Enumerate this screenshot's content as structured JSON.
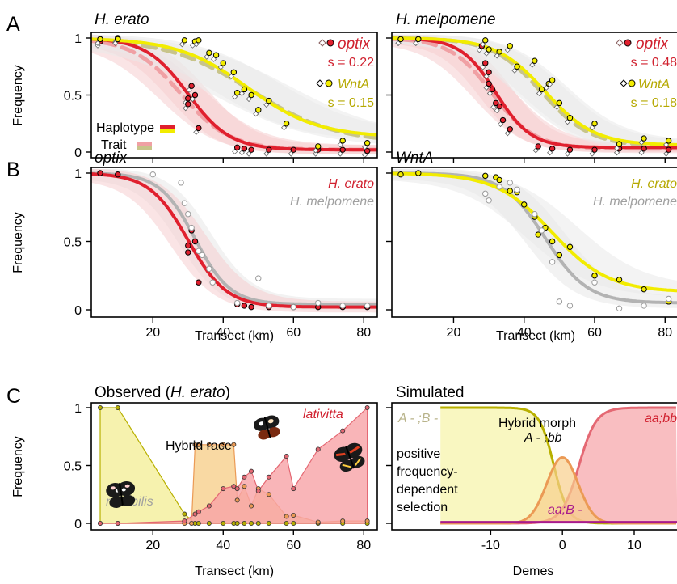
{
  "colors": {
    "optix": "#e0202e",
    "optix_trait": "#f0a0a4",
    "wnta": "#f2ec00",
    "wnta_trait": "#c8c48a",
    "melpomene": "#b3b3b3",
    "band_red": "#f6cdd0",
    "band_gray": "#e9e9e9",
    "label_red": "#d0202e",
    "label_olive": "#b5a800",
    "label_gray": "#a0a0a0",
    "notabilis": "#f4ef9a",
    "hybrid": "#f8cf8c",
    "lativitta": "#f7a3a6",
    "notabilis_line": "#b8b000",
    "hybrid_line": "#eb9a55",
    "lativitta_line": "#e46873",
    "sim_ab": "#a81a8c"
  },
  "figure_labels": {
    "A": "A",
    "B": "B",
    "C": "C"
  },
  "common": {
    "ylabel": "Frequency",
    "xlabel_transect": "Transect (km)",
    "xlabel_demes": "Demes",
    "yticks": [
      "0",
      "0.5",
      "1"
    ]
  },
  "chart_data": [
    {
      "id": "A-left",
      "type": "line",
      "title": "H. erato",
      "ylabel": "Frequency",
      "xlim": [
        5,
        82
      ],
      "ylim": [
        0,
        1
      ],
      "grid": false,
      "curves": [
        {
          "series": "optix haplotype",
          "style": "solid",
          "center": 30,
          "width": 6,
          "low": 0.02,
          "high": 1.0
        },
        {
          "series": "optix trait",
          "style": "dashed",
          "center": 28,
          "width": 7,
          "low": 0.02,
          "high": 1.0
        },
        {
          "series": "WntA haplotype",
          "style": "solid",
          "center": 47,
          "width": 10,
          "low": 0.13,
          "high": 1.0
        },
        {
          "series": "WntA trait",
          "style": "dashed",
          "center": 48,
          "width": 12,
          "low": 0.08,
          "high": 1.0
        }
      ],
      "points": [
        {
          "series": "optix",
          "x": [
            5,
            5,
            10,
            10,
            30,
            30,
            31,
            32,
            33,
            44,
            46,
            48,
            53,
            60,
            67,
            74,
            81
          ],
          "y": [
            0.99,
            0.97,
            1.0,
            0.99,
            0.47,
            0.42,
            0.58,
            0.5,
            0.21,
            0.04,
            0.03,
            0.02,
            0.02,
            0.02,
            0.02,
            0.02,
            0.01
          ]
        },
        {
          "series": "WntA",
          "x": [
            5,
            10,
            29,
            32,
            33,
            36,
            38,
            40,
            43,
            44,
            46,
            48,
            50,
            53,
            58,
            67,
            74,
            81
          ],
          "y": [
            0.99,
            0.99,
            0.98,
            0.97,
            0.98,
            0.87,
            0.85,
            0.78,
            0.7,
            0.52,
            0.55,
            0.5,
            0.37,
            0.45,
            0.25,
            0.05,
            0.1,
            0.08
          ]
        }
      ],
      "legend": {
        "items": [
          {
            "label": "optix",
            "sublabel": "s = 0.22"
          },
          {
            "label": "WntA",
            "sublabel": "s = 0.15"
          }
        ],
        "line_legend": [
          "Haplotype",
          "Trait"
        ],
        "placement": "top-right"
      }
    },
    {
      "id": "A-right",
      "type": "line",
      "title": "H. melpomene",
      "xlim": [
        5,
        82
      ],
      "ylim": [
        0,
        1
      ],
      "grid": false,
      "curves": [
        {
          "series": "optix haplotype",
          "style": "solid",
          "center": 32,
          "width": 5,
          "low": 0.04,
          "high": 1.0
        },
        {
          "series": "optix trait",
          "style": "dashed",
          "center": 31,
          "width": 6,
          "low": 0.03,
          "high": 1.0
        },
        {
          "series": "WntA haplotype",
          "style": "solid",
          "center": 46,
          "width": 7,
          "low": 0.06,
          "high": 1.0
        },
        {
          "series": "WntA trait",
          "style": "dashed",
          "center": 45,
          "width": 7,
          "low": 0.05,
          "high": 1.0
        }
      ],
      "points": [
        {
          "series": "optix",
          "x": [
            5,
            10,
            28,
            29,
            30,
            30,
            31,
            32,
            33,
            34,
            36,
            44,
            48,
            53,
            60,
            67,
            74,
            81
          ],
          "y": [
            0.99,
            0.99,
            0.93,
            0.78,
            0.7,
            0.6,
            0.55,
            0.43,
            0.4,
            0.28,
            0.2,
            0.05,
            0.03,
            0.02,
            0.02,
            0.03,
            0.03,
            0.02
          ]
        },
        {
          "series": "WntA",
          "x": [
            5,
            10,
            29,
            30,
            33,
            36,
            38,
            43,
            45,
            47,
            48,
            50,
            53,
            60,
            67,
            74,
            81
          ],
          "y": [
            0.99,
            0.99,
            0.98,
            0.9,
            0.88,
            0.93,
            0.75,
            0.8,
            0.55,
            0.6,
            0.63,
            0.43,
            0.3,
            0.25,
            0.07,
            0.12,
            0.1
          ]
        }
      ],
      "legend": {
        "items": [
          {
            "label": "optix",
            "sublabel": "s = 0.48"
          },
          {
            "label": "WntA",
            "sublabel": "s = 0.18"
          }
        ],
        "placement": "top-right"
      }
    },
    {
      "id": "B-left",
      "type": "line",
      "title": "optix",
      "ylabel": "Frequency",
      "xlim": [
        5,
        82
      ],
      "ylim": [
        0,
        1
      ],
      "grid": false,
      "curves": [
        {
          "series": "H. erato",
          "style": "solid",
          "center": 30,
          "width": 5.5,
          "low": 0.02,
          "high": 1.0
        },
        {
          "series": "H. melpomene",
          "style": "solid",
          "center": 32,
          "width": 5,
          "low": 0.04,
          "high": 1.0
        }
      ],
      "points": [
        {
          "series": "H. erato",
          "x": [
            5,
            10,
            30,
            30,
            31,
            32,
            33,
            44,
            46,
            48,
            53,
            60,
            67,
            74,
            81
          ],
          "y": [
            1.0,
            0.99,
            0.47,
            0.42,
            0.58,
            0.5,
            0.2,
            0.04,
            0.03,
            0.02,
            0.02,
            0.02,
            0.02,
            0.02,
            0.02
          ]
        },
        {
          "series": "H. melpomene",
          "x": [
            20,
            28,
            29,
            30,
            31,
            33,
            34,
            36,
            37,
            44,
            50,
            53,
            60,
            67,
            74,
            81
          ],
          "y": [
            0.99,
            0.93,
            0.78,
            0.7,
            0.6,
            0.43,
            0.4,
            0.3,
            0.2,
            0.05,
            0.23,
            0.03,
            0.02,
            0.05,
            0.03,
            0.03
          ]
        }
      ],
      "legend": {
        "items": [
          "H. erato",
          "H. melpomene"
        ],
        "placement": "top-right"
      }
    },
    {
      "id": "B-right",
      "type": "line",
      "title": "WntA",
      "xlim": [
        5,
        82
      ],
      "ylim": [
        0,
        1
      ],
      "grid": false,
      "curves": [
        {
          "series": "H. erato",
          "style": "solid",
          "center": 48,
          "width": 8,
          "low": 0.13,
          "high": 1.0
        },
        {
          "series": "H. melpomene",
          "style": "solid",
          "center": 46,
          "width": 6,
          "low": 0.05,
          "high": 1.0
        }
      ],
      "points": [
        {
          "series": "H. erato",
          "x": [
            5,
            10,
            29,
            32,
            33,
            36,
            38,
            40,
            43,
            44,
            46,
            48,
            50,
            53,
            60,
            67,
            74,
            81
          ],
          "y": [
            0.99,
            1.0,
            0.98,
            0.97,
            0.95,
            0.87,
            0.86,
            0.77,
            0.68,
            0.55,
            0.6,
            0.5,
            0.4,
            0.46,
            0.25,
            0.22,
            0.15,
            0.06
          ]
        },
        {
          "series": "H. melpomene",
          "x": [
            29,
            30,
            33,
            36,
            38,
            43,
            45,
            48,
            50,
            53,
            60,
            67,
            74,
            81
          ],
          "y": [
            0.85,
            0.8,
            0.9,
            0.93,
            0.88,
            0.7,
            0.58,
            0.35,
            0.06,
            0.03,
            0.2,
            0.01,
            0.03,
            0.08
          ]
        }
      ],
      "legend": {
        "items": [
          "H. erato",
          "H. melpomene"
        ],
        "placement": "top-right"
      }
    },
    {
      "id": "C-left",
      "type": "area",
      "title": "Observed (H. erato)",
      "ylabel": "Frequency",
      "xlabel": "Transect (km)",
      "xlim": [
        5,
        82
      ],
      "ylim": [
        0,
        1
      ],
      "xticks": [
        20,
        40,
        60,
        80
      ],
      "series": [
        {
          "name": "notabilis",
          "x": [
            5,
            10,
            29,
            32,
            33,
            36,
            40,
            43,
            44,
            46,
            48,
            50,
            53,
            58,
            60,
            67,
            74,
            81
          ],
          "values": [
            1.0,
            1.0,
            0.08,
            0.0,
            0.0,
            0.0,
            0.0,
            0.0,
            0.0,
            0.0,
            0.0,
            0.0,
            0.0,
            0.0,
            0.0,
            0.0,
            0.0,
            0.0
          ]
        },
        {
          "name": "Hybrid race",
          "x": [
            5,
            10,
            29,
            31,
            32,
            33,
            36,
            40,
            43,
            44,
            46,
            48,
            50,
            53,
            58,
            60,
            67,
            74,
            81
          ],
          "values": [
            0.0,
            0.0,
            0.0,
            0.0,
            0.68,
            0.68,
            0.68,
            0.68,
            0.68,
            0.2,
            0.32,
            0.15,
            0.3,
            0.25,
            0.06,
            0.07,
            0.01,
            0.02,
            0.02
          ]
        },
        {
          "name": "lativitta",
          "x": [
            5,
            10,
            29,
            32,
            33,
            36,
            40,
            43,
            44,
            46,
            48,
            50,
            53,
            58,
            60,
            67,
            74,
            81
          ],
          "values": [
            0.0,
            0.0,
            0.02,
            0.08,
            0.1,
            0.15,
            0.3,
            0.32,
            0.3,
            0.4,
            0.45,
            0.28,
            0.4,
            0.58,
            0.3,
            0.64,
            0.8,
            1.0
          ]
        }
      ],
      "annotations": [
        "Hybrid race",
        "lativitta",
        "notabilis"
      ]
    },
    {
      "id": "C-right",
      "type": "area",
      "title": "Simulated",
      "xlabel": "Demes",
      "xlim": [
        -16,
        15
      ],
      "ylim": [
        0,
        1
      ],
      "xticks": [
        -10,
        0,
        10
      ],
      "curves": [
        {
          "series": "A - ;B -",
          "kind": "decreasing",
          "center": -1.2,
          "width": 1.0
        },
        {
          "series": "A - ;bb",
          "kind": "bump",
          "center": 0,
          "width": 1.4,
          "peak": 0.57
        },
        {
          "series": "aa;bb",
          "kind": "increasing",
          "center": 2.3,
          "width": 1.2
        },
        {
          "series": "aa;B -",
          "kind": "flat",
          "value": 0.01
        }
      ],
      "annotations": [
        "A - ;B -",
        "Hybrid morph",
        "A - ;bb",
        "aa;bb",
        "aa;B -",
        "positive frequency-dependent selection"
      ]
    }
  ],
  "text": {
    "a_title_left": "H. erato",
    "a_title_right": "H. melpomene",
    "legend_optix": "optix",
    "legend_wnta": "WntA",
    "s_optix_left": "s = 0.22",
    "s_wnta_left": "s = 0.15",
    "s_optix_right": "s = 0.48",
    "s_wnta_right": "s = 0.18",
    "haplotype": "Haplotype",
    "trait": "Trait",
    "b_title_left": "optix",
    "b_title_right": "WntA",
    "b_legend_erato": "H. erato",
    "b_legend_melp": "H. melpomene",
    "c_title_left_pre": "Observed (",
    "c_title_left_it": "H. erato",
    "c_title_left_post": ")",
    "c_title_right": "Simulated",
    "hybrid_race": "Hybrid race",
    "lativitta": "lativitta",
    "notabilis": "notabilis",
    "sim_AB": "A - ;B -",
    "hybrid_morph": "Hybrid morph",
    "sim_Abb": "A - ;bb",
    "sim_aabb": "aa;bb",
    "sim_aaB": "aa;B -",
    "pfds_1": "positive",
    "pfds_2": "frequency-",
    "pfds_3": "dependent",
    "pfds_4": "selection",
    "xtick_20": "20",
    "xtick_40": "40",
    "xtick_60": "60",
    "xtick_80": "80",
    "xtick_m10": "-10",
    "xtick_0": "0",
    "xtick_10": "10"
  },
  "icons": [
    "butterfly-notabilis-icon",
    "butterfly-hybrid-icon",
    "butterfly-lativitta-icon"
  ]
}
